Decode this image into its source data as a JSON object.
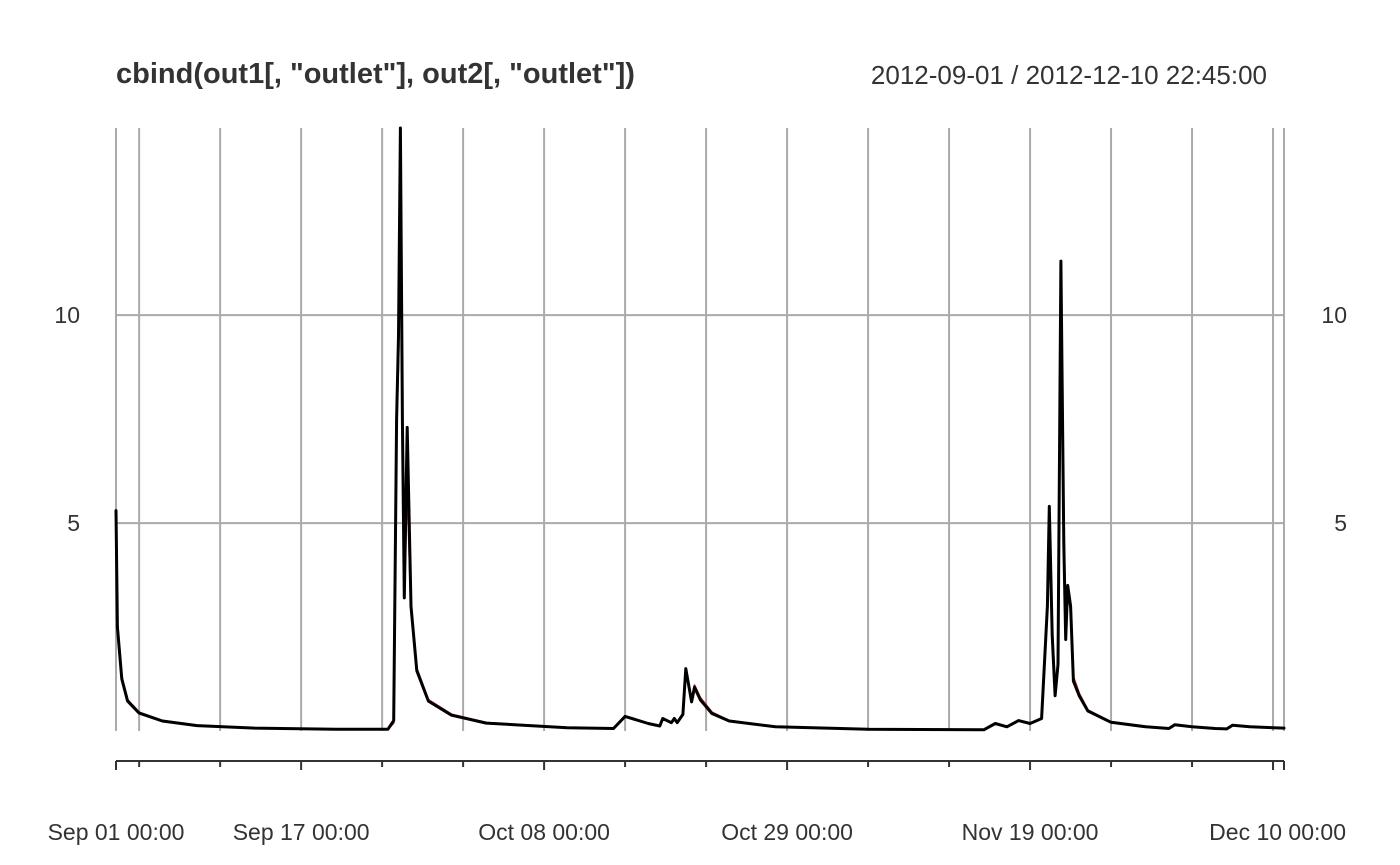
{
  "chart_data": {
    "type": "line",
    "title": "cbind(out1[, \"outlet\"], out2[, \"outlet\"])",
    "date_range": "2012-09-01 / 2012-12-10 22:45:00",
    "x_range": [
      "2012-09-01 00:00",
      "2012-12-10 22:45"
    ],
    "ylim": [
      0,
      14.5
    ],
    "y_ticks": [
      5,
      10
    ],
    "y_tick_labels": [
      "5",
      "10"
    ],
    "x_tick_labels": [
      {
        "date": "2012-09-01 00:00",
        "label": "Sep 01 00:00"
      },
      {
        "date": "2012-09-17 00:00",
        "label": "Sep 17 00:00"
      },
      {
        "date": "2012-10-08 00:00",
        "label": "Oct 08 00:00"
      },
      {
        "date": "2012-10-29 00:00",
        "label": "Oct 29 00:00"
      },
      {
        "date": "2012-11-19 00:00",
        "label": "Nov 19 00:00"
      },
      {
        "date": "2012-12-10 00:00",
        "label": "Dec 10 00:00"
      }
    ],
    "x_minor_ticks": [
      "2012-09-03",
      "2012-09-10",
      "2012-09-24",
      "2012-10-01",
      "2012-10-15",
      "2012-10-22",
      "2012-11-05",
      "2012-11-12",
      "2012-11-26",
      "2012-12-03"
    ],
    "grid": true,
    "series": [
      {
        "color": "#b22222",
        "points": [
          [
            "2012-09-01 00:00",
            5.3
          ],
          [
            "2012-09-01 03:00",
            2.6
          ],
          [
            "2012-09-01 12:00",
            1.3
          ],
          [
            "2012-09-02 00:00",
            0.75
          ],
          [
            "2012-09-03 00:00",
            0.45
          ],
          [
            "2012-09-05 00:00",
            0.25
          ],
          [
            "2012-09-08 00:00",
            0.14
          ],
          [
            "2012-09-13 00:00",
            0.07
          ],
          [
            "2012-09-20 00:00",
            0.04
          ],
          [
            "2012-09-24 12:00",
            0.04
          ],
          [
            "2012-09-25 00:00",
            0.2
          ],
          [
            "2012-09-25 06:00",
            7.3
          ],
          [
            "2012-09-25 10:00",
            9.0
          ],
          [
            "2012-09-25 14:00",
            13.7
          ],
          [
            "2012-09-25 18:00",
            7.3
          ],
          [
            "2012-09-25 22:00",
            3.3
          ],
          [
            "2012-09-26 04:00",
            6.0
          ],
          [
            "2012-09-26 12:00",
            2.9
          ],
          [
            "2012-09-27 00:00",
            1.5
          ],
          [
            "2012-09-28 00:00",
            0.75
          ],
          [
            "2012-09-30 00:00",
            0.4
          ],
          [
            "2012-10-03 00:00",
            0.2
          ],
          [
            "2012-10-10 00:00",
            0.08
          ],
          [
            "2012-10-14 00:00",
            0.06
          ],
          [
            "2012-10-15 00:00",
            0.35
          ],
          [
            "2012-10-17 00:00",
            0.18
          ],
          [
            "2012-10-18 00:00",
            0.12
          ],
          [
            "2012-10-18 06:00",
            0.3
          ],
          [
            "2012-10-19 00:00",
            0.2
          ],
          [
            "2012-10-19 06:00",
            0.3
          ],
          [
            "2012-10-19 12:00",
            0.2
          ],
          [
            "2012-10-20 00:00",
            0.4
          ],
          [
            "2012-10-20 06:00",
            1.5
          ],
          [
            "2012-10-20 18:00",
            0.75
          ],
          [
            "2012-10-21 00:00",
            1.1
          ],
          [
            "2012-10-21 12:00",
            0.8
          ],
          [
            "2012-10-22 12:00",
            0.45
          ],
          [
            "2012-10-24 00:00",
            0.25
          ],
          [
            "2012-10-28 00:00",
            0.1
          ],
          [
            "2012-11-05 00:00",
            0.04
          ],
          [
            "2012-11-15 00:00",
            0.03
          ],
          [
            "2012-11-16 00:00",
            0.18
          ],
          [
            "2012-11-17 00:00",
            0.1
          ],
          [
            "2012-11-18 00:00",
            0.25
          ],
          [
            "2012-11-19 00:00",
            0.18
          ],
          [
            "2012-11-20 00:00",
            0.3
          ],
          [
            "2012-11-20 12:00",
            3.0
          ],
          [
            "2012-11-20 16:00",
            5.3
          ],
          [
            "2012-11-20 22:00",
            2.5
          ],
          [
            "2012-11-21 04:00",
            1.0
          ],
          [
            "2012-11-21 10:00",
            1.5
          ],
          [
            "2012-11-21 16:00",
            10.3
          ],
          [
            "2012-11-21 22:00",
            5.0
          ],
          [
            "2012-11-22 02:00",
            2.3
          ],
          [
            "2012-11-22 06:00",
            3.4
          ],
          [
            "2012-11-22 12:00",
            2.9
          ],
          [
            "2012-11-22 18:00",
            1.3
          ],
          [
            "2012-11-23 06:00",
            0.9
          ],
          [
            "2012-11-24 00:00",
            0.5
          ],
          [
            "2012-11-26 00:00",
            0.22
          ],
          [
            "2012-11-29 00:00",
            0.1
          ],
          [
            "2012-12-01 00:00",
            0.06
          ],
          [
            "2012-12-01 12:00",
            0.15
          ],
          [
            "2012-12-03 00:00",
            0.1
          ],
          [
            "2012-12-05 00:00",
            0.06
          ],
          [
            "2012-12-06 00:00",
            0.05
          ],
          [
            "2012-12-06 12:00",
            0.14
          ],
          [
            "2012-12-08 00:00",
            0.1
          ],
          [
            "2012-12-10 22:45",
            0.07
          ]
        ]
      },
      {
        "color": "#000000",
        "points": [
          [
            "2012-09-01 00:00",
            5.3
          ],
          [
            "2012-09-01 03:00",
            2.5
          ],
          [
            "2012-09-01 12:00",
            1.25
          ],
          [
            "2012-09-02 00:00",
            0.72
          ],
          [
            "2012-09-03 00:00",
            0.43
          ],
          [
            "2012-09-05 00:00",
            0.24
          ],
          [
            "2012-09-08 00:00",
            0.13
          ],
          [
            "2012-09-13 00:00",
            0.07
          ],
          [
            "2012-09-20 00:00",
            0.04
          ],
          [
            "2012-09-24 12:00",
            0.04
          ],
          [
            "2012-09-25 00:00",
            0.25
          ],
          [
            "2012-09-25 06:00",
            7.5
          ],
          [
            "2012-09-25 10:00",
            9.5
          ],
          [
            "2012-09-25 14:00",
            14.5
          ],
          [
            "2012-09-25 18:00",
            7.5
          ],
          [
            "2012-09-25 22:00",
            3.2
          ],
          [
            "2012-09-26 04:00",
            7.3
          ],
          [
            "2012-09-26 12:00",
            3.0
          ],
          [
            "2012-09-27 00:00",
            1.45
          ],
          [
            "2012-09-28 00:00",
            0.72
          ],
          [
            "2012-09-30 00:00",
            0.38
          ],
          [
            "2012-10-03 00:00",
            0.19
          ],
          [
            "2012-10-10 00:00",
            0.08
          ],
          [
            "2012-10-14 00:00",
            0.06
          ],
          [
            "2012-10-15 00:00",
            0.35
          ],
          [
            "2012-10-17 00:00",
            0.18
          ],
          [
            "2012-10-18 00:00",
            0.12
          ],
          [
            "2012-10-18 06:00",
            0.3
          ],
          [
            "2012-10-19 00:00",
            0.2
          ],
          [
            "2012-10-19 06:00",
            0.3
          ],
          [
            "2012-10-19 12:00",
            0.2
          ],
          [
            "2012-10-20 00:00",
            0.4
          ],
          [
            "2012-10-20 06:00",
            1.5
          ],
          [
            "2012-10-20 18:00",
            0.7
          ],
          [
            "2012-10-21 00:00",
            1.05
          ],
          [
            "2012-10-21 12:00",
            0.75
          ],
          [
            "2012-10-22 12:00",
            0.42
          ],
          [
            "2012-10-24 00:00",
            0.24
          ],
          [
            "2012-10-28 00:00",
            0.1
          ],
          [
            "2012-11-05 00:00",
            0.04
          ],
          [
            "2012-11-15 00:00",
            0.03
          ],
          [
            "2012-11-16 00:00",
            0.18
          ],
          [
            "2012-11-17 00:00",
            0.1
          ],
          [
            "2012-11-18 00:00",
            0.25
          ],
          [
            "2012-11-19 00:00",
            0.18
          ],
          [
            "2012-11-20 00:00",
            0.3
          ],
          [
            "2012-11-20 12:00",
            3.0
          ],
          [
            "2012-11-20 16:00",
            5.4
          ],
          [
            "2012-11-20 22:00",
            2.3
          ],
          [
            "2012-11-21 04:00",
            0.85
          ],
          [
            "2012-11-21 10:00",
            1.6
          ],
          [
            "2012-11-21 16:00",
            11.3
          ],
          [
            "2012-11-21 22:00",
            4.5
          ],
          [
            "2012-11-22 02:00",
            2.2
          ],
          [
            "2012-11-22 06:00",
            3.5
          ],
          [
            "2012-11-22 12:00",
            3.0
          ],
          [
            "2012-11-22 18:00",
            1.2
          ],
          [
            "2012-11-23 06:00",
            0.85
          ],
          [
            "2012-11-24 00:00",
            0.48
          ],
          [
            "2012-11-26 00:00",
            0.21
          ],
          [
            "2012-11-29 00:00",
            0.1
          ],
          [
            "2012-12-01 00:00",
            0.06
          ],
          [
            "2012-12-01 12:00",
            0.15
          ],
          [
            "2012-12-03 00:00",
            0.1
          ],
          [
            "2012-12-05 00:00",
            0.06
          ],
          [
            "2012-12-06 00:00",
            0.05
          ],
          [
            "2012-12-06 12:00",
            0.14
          ],
          [
            "2012-12-08 00:00",
            0.1
          ],
          [
            "2012-12-10 22:45",
            0.07
          ]
        ]
      }
    ]
  }
}
